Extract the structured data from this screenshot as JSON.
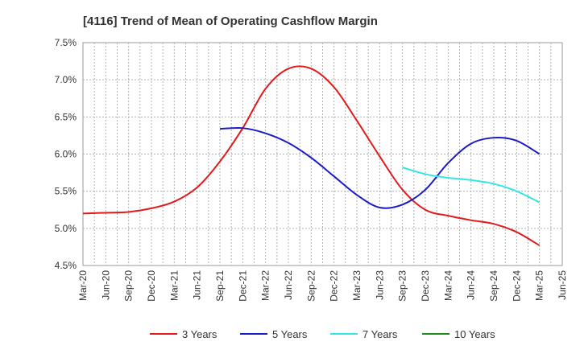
{
  "chart_data": {
    "type": "line",
    "title": "[4116]  Trend of Mean of Operating Cashflow Margin",
    "xlabel": "",
    "ylabel": "",
    "ylim": [
      4.5,
      7.5
    ],
    "yticks": [
      4.5,
      5.0,
      5.5,
      6.0,
      6.5,
      7.0,
      7.5
    ],
    "ytick_labels": [
      "4.5%",
      "5.0%",
      "5.5%",
      "6.0%",
      "6.5%",
      "7.0%",
      "7.5%"
    ],
    "categories": [
      "Mar-20",
      "Jun-20",
      "Sep-20",
      "Dec-20",
      "Mar-21",
      "Jun-21",
      "Sep-21",
      "Dec-21",
      "Mar-22",
      "Jun-22",
      "Sep-22",
      "Dec-22",
      "Mar-23",
      "Jun-23",
      "Sep-23",
      "Dec-23",
      "Mar-24",
      "Jun-24",
      "Sep-24",
      "Dec-24",
      "Mar-25",
      "Jun-25"
    ],
    "grid": true,
    "legend_position": "bottom",
    "series": [
      {
        "name": "3 Years",
        "color": "#e31a1c",
        "values": [
          5.2,
          5.21,
          5.22,
          5.27,
          5.36,
          5.55,
          5.9,
          6.35,
          6.88,
          7.15,
          7.15,
          6.9,
          6.45,
          5.97,
          5.52,
          5.25,
          5.17,
          5.11,
          5.06,
          4.95,
          4.77,
          null
        ]
      },
      {
        "name": "5 Years",
        "color": "#1a1ac8",
        "values": [
          null,
          null,
          null,
          null,
          null,
          null,
          6.34,
          6.35,
          6.28,
          6.15,
          5.95,
          5.7,
          5.45,
          5.28,
          5.32,
          5.52,
          5.88,
          6.14,
          6.22,
          6.18,
          6.0,
          null
        ]
      },
      {
        "name": "7 Years",
        "color": "#33e5e5",
        "values": [
          null,
          null,
          null,
          null,
          null,
          null,
          null,
          null,
          null,
          null,
          null,
          null,
          null,
          null,
          5.82,
          5.73,
          5.68,
          5.65,
          5.6,
          5.5,
          5.35,
          null
        ]
      },
      {
        "name": "10 Years",
        "color": "#1f8a1f",
        "values": [
          null,
          null,
          null,
          null,
          null,
          null,
          null,
          null,
          null,
          null,
          null,
          null,
          null,
          null,
          null,
          null,
          null,
          null,
          null,
          null,
          null,
          null
        ]
      }
    ]
  }
}
